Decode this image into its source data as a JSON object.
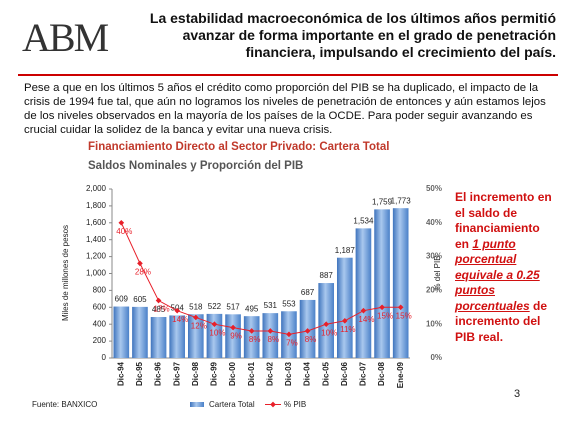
{
  "slide": {
    "logo": "ABM",
    "header": "La estabilidad macroeconómica de los últimos años permitió avanzar de forma importante en el grado de penetración financiera, impulsando el crecimiento del país.",
    "body": "Pese a que en los últimos 5 años el crédito como proporción del PIB se ha duplicado, el impacto de la crisis de 1994 fue tal, que aún no logramos los niveles de penetración de entonces y aún estamos lejos de los niveles observados en la mayoría de los países de la OCDE. Para poder seguir avanzando es crucial cuidar la solidez de la banca y evitar una nueva crisis.",
    "note": {
      "before": "El incremento en el saldo de financiamiento en ",
      "underlined": "1 punto porcentual equivale a 0.25 puntos porcentuales",
      "after": " de incremento del PIB real."
    },
    "source": "Fuente:  BANXICO",
    "page": "3"
  },
  "chart_data": {
    "type": "bar",
    "title": "Financiamiento Directo al  Sector Privado: Cartera Total",
    "subtitle": "Saldos Nominales y Proporción del PIB",
    "ylabel": "Miles de millones de pesos",
    "y2label": "% del PIB",
    "categories": [
      "Dic-94",
      "Dic-95",
      "Dic-96",
      "Dic-97",
      "Dic-98",
      "Dic-99",
      "Dic-00",
      "Dic-01",
      "Dic-02",
      "Dic-03",
      "Dic-04",
      "Dic-05",
      "Dic-06",
      "Dic-07",
      "Dic-08",
      "Ene-09"
    ],
    "series": [
      {
        "name": "Cartera Total",
        "type": "bar",
        "color": "#5b8fd0",
        "values": [
          609,
          605,
          485,
          504,
          518,
          522,
          517,
          495,
          531,
          553,
          687,
          887,
          1187,
          1534,
          1759,
          1773
        ],
        "value_labels": [
          "609",
          "605",
          "485",
          "504",
          "518",
          "522",
          "517",
          "495",
          "531",
          "553",
          "687",
          "887",
          "1,187",
          "1,534",
          "1,759",
          "1,773"
        ]
      },
      {
        "name": "% PIB",
        "type": "line",
        "axis": "y2",
        "color": "#e8202a",
        "values": [
          40,
          28,
          17,
          14,
          12,
          10,
          9,
          8,
          8,
          7,
          8,
          10,
          11,
          14,
          15,
          15
        ],
        "value_labels": [
          "40%",
          "28%",
          "17%",
          "14%",
          "12%",
          "10%",
          "9%",
          "8%",
          "8%",
          "7%",
          "8%",
          "10%",
          "11%",
          "14%",
          "15%",
          "15%"
        ]
      }
    ],
    "ylim": [
      0,
      2000
    ],
    "yticks": [
      0,
      200,
      400,
      600,
      800,
      {
        "value": 1000,
        "label": "1,000"
      },
      {
        "value": 1200,
        "label": "1,200"
      },
      {
        "value": 1400,
        "label": "1,400"
      },
      {
        "value": 1600,
        "label": "1,600"
      },
      {
        "value": 1800,
        "label": "1,800"
      },
      {
        "value": 2000,
        "label": "2,000"
      }
    ],
    "y2lim": [
      0,
      50
    ],
    "y2ticks": [
      {
        "value": 0,
        "label": "0%"
      },
      {
        "value": 10,
        "label": "10%"
      },
      {
        "value": 20,
        "label": "20%"
      },
      {
        "value": 30,
        "label": "30%"
      },
      {
        "value": 40,
        "label": "40%"
      },
      {
        "value": 50,
        "label": "50%"
      }
    ],
    "grid": false
  }
}
